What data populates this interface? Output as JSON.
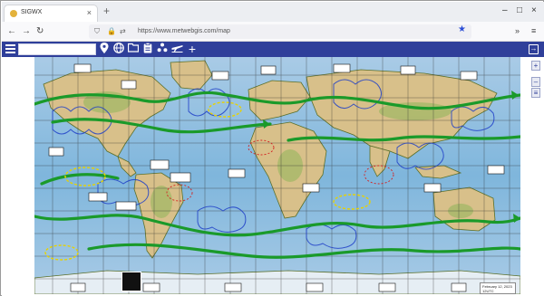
{
  "browser": {
    "tab_title": "SIGWX",
    "tab_close": "×",
    "new_tab": "+",
    "url": "https://www.metwebgis.com/map",
    "window_minimize": "–",
    "window_maximize": "□",
    "window_close": "×",
    "nav_back": "←",
    "nav_forward": "→",
    "nav_reload": "↻",
    "menu": "≡",
    "more": "»"
  },
  "app": {
    "search_placeholder": "",
    "search_value": "",
    "tools": [
      {
        "name": "pin-icon",
        "glyph": "📍"
      },
      {
        "name": "globe-icon",
        "glyph": "🌐"
      },
      {
        "name": "folder-icon",
        "glyph": "▭"
      },
      {
        "name": "clipboard-icon",
        "glyph": "📋"
      },
      {
        "name": "layers-icon",
        "glyph": "▲"
      },
      {
        "name": "plane-icon",
        "glyph": "✈"
      },
      {
        "name": "plus-icon",
        "glyph": "+"
      }
    ],
    "zoom_in": "+",
    "zoom_out": "–",
    "layer_toggle": "≡"
  },
  "map": {
    "legend_line1": "February 12, 2023",
    "legend_line2": "12UTC"
  },
  "colors": {
    "appbar": "#2f3f9a",
    "ocean": "#7fb6dc",
    "land": "#d8c08a",
    "jet": "#1a9a2a",
    "grid": "#2a2a2a"
  }
}
